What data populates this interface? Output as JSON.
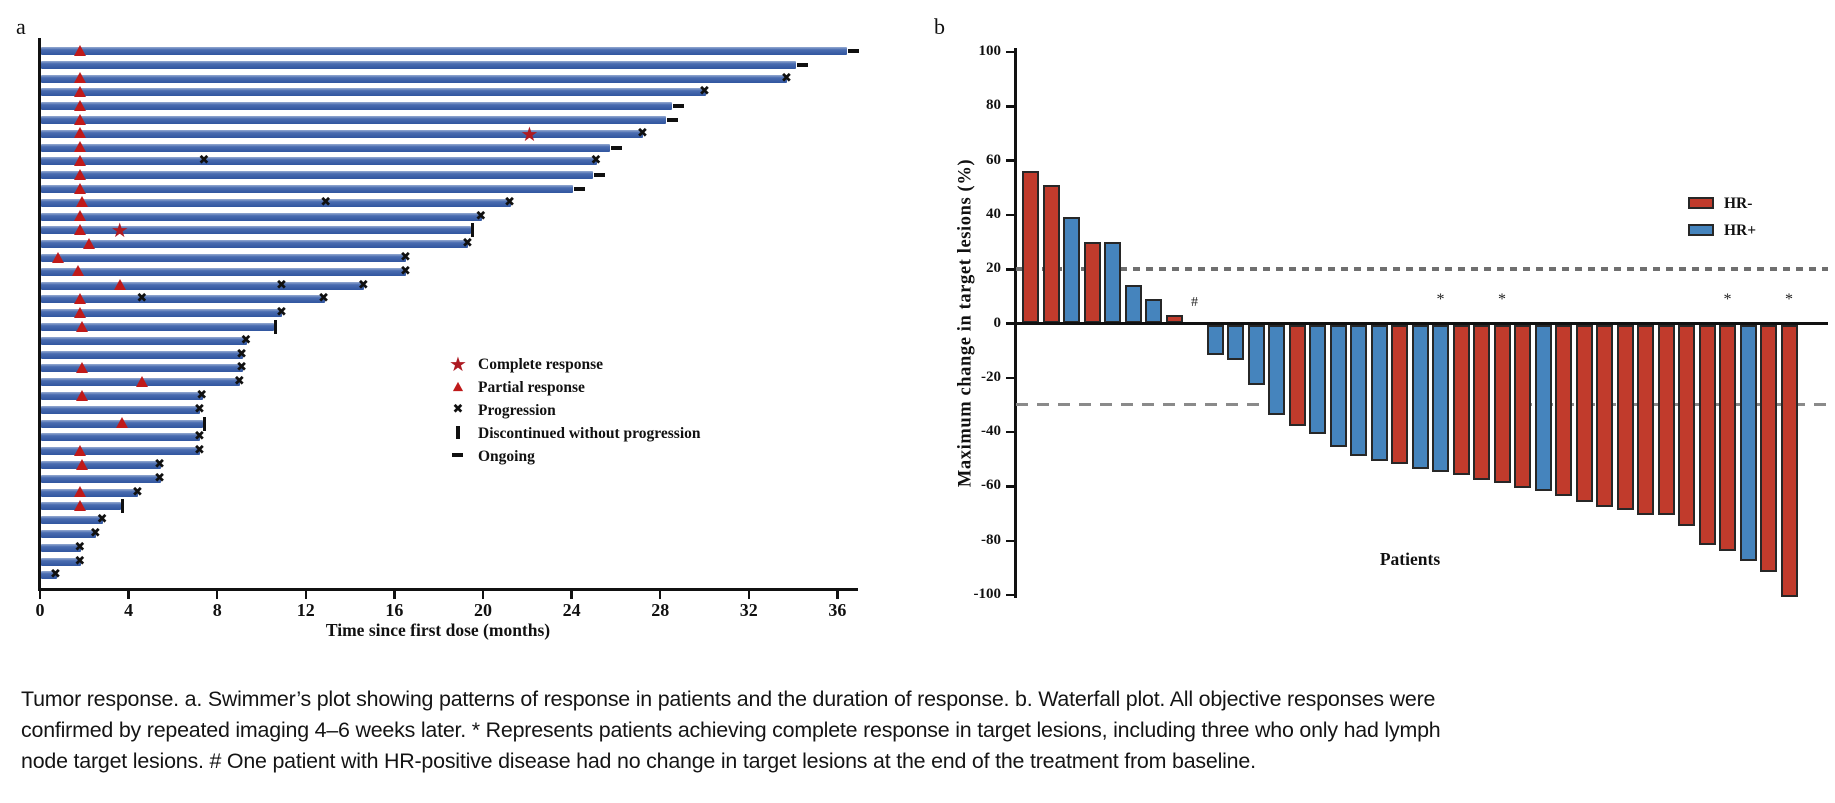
{
  "figure": {
    "panel_a_label": "a",
    "panel_b_label": "b"
  },
  "caption": {
    "lines": [
      "Tumor response. a. Swimmer’s plot showing patterns of response in patients and the duration of response. b. Waterfall plot. All objective responses were",
      "confirmed by repeated imaging 4–6 weeks later. * Represents patients achieving complete response in target lesions, including three who only had lymph",
      "node target lesions. # One patient with HR-positive disease had no change in target lesions at the end of the treatment from baseline."
    ]
  },
  "colors": {
    "swimmer_bar": "#3c63a8",
    "response_marker_red": "#bf1a1a",
    "event_marker_black": "#111111",
    "hr_negative": "#c13b2c",
    "hr_positive": "#4584bd",
    "reference_line": "#7f7f7f",
    "axis": "#111111"
  },
  "chart_data": [
    {
      "type": "swimmer",
      "panel": "a",
      "xlabel": "Time since first dose (months)",
      "x_ticks": [
        0,
        4,
        8,
        12,
        16,
        20,
        24,
        28,
        32,
        36
      ],
      "xlim": [
        0,
        37
      ],
      "grid": false,
      "legend_position": "center-right",
      "legend": [
        {
          "marker": "complete-response-star",
          "label": "Complete response"
        },
        {
          "marker": "partial-response-triangle",
          "label": "Partial response"
        },
        {
          "marker": "progression-x",
          "label": "Progression"
        },
        {
          "marker": "discontinued-bar",
          "label": "Discontinued without progression"
        },
        {
          "marker": "ongoing-dash",
          "label": "Ongoing"
        }
      ],
      "bars": [
        {
          "duration": 36.4,
          "events": [
            {
              "type": "partial_response",
              "t": 1.8
            },
            {
              "type": "ongoing",
              "t": 36.4
            }
          ]
        },
        {
          "duration": 34.1,
          "events": [
            {
              "type": "ongoing",
              "t": 34.1
            }
          ]
        },
        {
          "duration": 33.7,
          "events": [
            {
              "type": "partial_response",
              "t": 1.8
            },
            {
              "type": "progression",
              "t": 33.7
            }
          ]
        },
        {
          "duration": 30,
          "events": [
            {
              "type": "partial_response",
              "t": 1.8
            },
            {
              "type": "progression",
              "t": 30
            }
          ]
        },
        {
          "duration": 28.5,
          "events": [
            {
              "type": "partial_response",
              "t": 1.8
            },
            {
              "type": "ongoing",
              "t": 28.5
            }
          ]
        },
        {
          "duration": 28.2,
          "events": [
            {
              "type": "partial_response",
              "t": 1.8
            },
            {
              "type": "ongoing",
              "t": 28.2
            }
          ]
        },
        {
          "duration": 27.2,
          "events": [
            {
              "type": "partial_response",
              "t": 1.8
            },
            {
              "type": "complete_response",
              "t": 22.1
            },
            {
              "type": "progression",
              "t": 27.2
            }
          ]
        },
        {
          "duration": 25.7,
          "events": [
            {
              "type": "partial_response",
              "t": 1.8
            },
            {
              "type": "ongoing",
              "t": 25.7
            }
          ]
        },
        {
          "duration": 25.1,
          "events": [
            {
              "type": "partial_response",
              "t": 1.8
            },
            {
              "type": "progression",
              "t": 7.4
            },
            {
              "type": "progression",
              "t": 25.1
            }
          ]
        },
        {
          "duration": 24.9,
          "events": [
            {
              "type": "partial_response",
              "t": 1.8
            },
            {
              "type": "ongoing",
              "t": 24.9
            }
          ]
        },
        {
          "duration": 24,
          "events": [
            {
              "type": "partial_response",
              "t": 1.8
            },
            {
              "type": "ongoing",
              "t": 24
            }
          ]
        },
        {
          "duration": 21.2,
          "events": [
            {
              "type": "partial_response",
              "t": 1.9
            },
            {
              "type": "progression",
              "t": 12.9
            },
            {
              "type": "progression",
              "t": 21.2
            }
          ]
        },
        {
          "duration": 19.9,
          "events": [
            {
              "type": "partial_response",
              "t": 1.8
            },
            {
              "type": "progression",
              "t": 19.9
            }
          ]
        },
        {
          "duration": 19.4,
          "events": [
            {
              "type": "partial_response",
              "t": 1.8
            },
            {
              "type": "complete_response",
              "t": 3.6
            },
            {
              "type": "discontinued",
              "t": 19.4
            }
          ]
        },
        {
          "duration": 19.3,
          "events": [
            {
              "type": "partial_response",
              "t": 2.2
            },
            {
              "type": "progression",
              "t": 19.3
            }
          ]
        },
        {
          "duration": 16.5,
          "events": [
            {
              "type": "partial_response",
              "t": 0.8
            },
            {
              "type": "progression",
              "t": 16.5
            }
          ]
        },
        {
          "duration": 16.5,
          "events": [
            {
              "type": "partial_response",
              "t": 1.7
            },
            {
              "type": "progression",
              "t": 16.5
            }
          ]
        },
        {
          "duration": 14.6,
          "events": [
            {
              "type": "partial_response",
              "t": 3.6
            },
            {
              "type": "progression",
              "t": 10.9
            },
            {
              "type": "progression",
              "t": 14.6
            }
          ]
        },
        {
          "duration": 12.8,
          "events": [
            {
              "type": "partial_response",
              "t": 1.8
            },
            {
              "type": "progression",
              "t": 4.6
            },
            {
              "type": "progression",
              "t": 12.8
            }
          ]
        },
        {
          "duration": 10.9,
          "events": [
            {
              "type": "partial_response",
              "t": 1.8
            },
            {
              "type": "progression",
              "t": 10.9
            }
          ]
        },
        {
          "duration": 10.5,
          "events": [
            {
              "type": "partial_response",
              "t": 1.9
            },
            {
              "type": "discontinued",
              "t": 10.5
            }
          ]
        },
        {
          "duration": 9.3,
          "events": [
            {
              "type": "progression",
              "t": 9.3
            }
          ]
        },
        {
          "duration": 9.1,
          "events": [
            {
              "type": "progression",
              "t": 9.1
            }
          ]
        },
        {
          "duration": 9.1,
          "events": [
            {
              "type": "partial_response",
              "t": 1.9
            },
            {
              "type": "progression",
              "t": 9.1
            }
          ]
        },
        {
          "duration": 9,
          "events": [
            {
              "type": "partial_response",
              "t": 4.6
            },
            {
              "type": "progression",
              "t": 9
            }
          ]
        },
        {
          "duration": 7.3,
          "events": [
            {
              "type": "partial_response",
              "t": 1.9
            },
            {
              "type": "progression",
              "t": 7.3
            }
          ]
        },
        {
          "duration": 7.2,
          "events": [
            {
              "type": "progression",
              "t": 7.2
            }
          ]
        },
        {
          "duration": 7.3,
          "events": [
            {
              "type": "partial_response",
              "t": 3.7
            },
            {
              "type": "discontinued",
              "t": 7.3
            }
          ]
        },
        {
          "duration": 7.2,
          "events": [
            {
              "type": "progression",
              "t": 7.2
            }
          ]
        },
        {
          "duration": 7.2,
          "events": [
            {
              "type": "partial_response",
              "t": 1.8
            },
            {
              "type": "progression",
              "t": 7.2
            }
          ]
        },
        {
          "duration": 5.4,
          "events": [
            {
              "type": "partial_response",
              "t": 1.9
            },
            {
              "type": "progression",
              "t": 5.4
            }
          ]
        },
        {
          "duration": 5.4,
          "events": [
            {
              "type": "progression",
              "t": 5.4
            }
          ]
        },
        {
          "duration": 4.4,
          "events": [
            {
              "type": "partial_response",
              "t": 1.8
            },
            {
              "type": "progression",
              "t": 4.4
            }
          ]
        },
        {
          "duration": 3.6,
          "events": [
            {
              "type": "partial_response",
              "t": 1.8
            },
            {
              "type": "discontinued",
              "t": 3.6
            }
          ]
        },
        {
          "duration": 2.8,
          "events": [
            {
              "type": "progression",
              "t": 2.8
            }
          ]
        },
        {
          "duration": 2.5,
          "events": [
            {
              "type": "progression",
              "t": 2.5
            }
          ]
        },
        {
          "duration": 1.8,
          "events": [
            {
              "type": "progression",
              "t": 1.8
            }
          ]
        },
        {
          "duration": 1.8,
          "events": [
            {
              "type": "progression",
              "t": 1.8
            }
          ]
        },
        {
          "duration": 0.7,
          "events": [
            {
              "type": "progression",
              "t": 0.7
            }
          ]
        }
      ]
    },
    {
      "type": "waterfall",
      "panel": "b",
      "ylabel": "Maximum change in target lesions (%)",
      "xlabel": "Patients",
      "ylim": [
        -100,
        100
      ],
      "y_ticks": [
        100,
        80,
        60,
        40,
        20,
        0,
        -20,
        -40,
        -60,
        -80,
        -100
      ],
      "ref_lines": [
        20,
        -30
      ],
      "grid": false,
      "legend_position": "top-right",
      "legend": [
        {
          "label": "HR-",
          "color": "#c13b2c"
        },
        {
          "label": "HR+",
          "color": "#4584bd"
        }
      ],
      "patients": [
        {
          "value": 56,
          "group": "HR-"
        },
        {
          "value": 51,
          "group": "HR-"
        },
        {
          "value": 39,
          "group": "HR+"
        },
        {
          "value": 30,
          "group": "HR-"
        },
        {
          "value": 30,
          "group": "HR+"
        },
        {
          "value": 14,
          "group": "HR+"
        },
        {
          "value": 9,
          "group": "HR+"
        },
        {
          "value": 3,
          "group": "HR-"
        },
        {
          "value": 0,
          "group": "HR+",
          "annotation": "#"
        },
        {
          "value": -11,
          "group": "HR+"
        },
        {
          "value": -13,
          "group": "HR+"
        },
        {
          "value": -22,
          "group": "HR+"
        },
        {
          "value": -33,
          "group": "HR+"
        },
        {
          "value": -37,
          "group": "HR-"
        },
        {
          "value": -40,
          "group": "HR+"
        },
        {
          "value": -45,
          "group": "HR+"
        },
        {
          "value": -48,
          "group": "HR+"
        },
        {
          "value": -50,
          "group": "HR+"
        },
        {
          "value": -51,
          "group": "HR-"
        },
        {
          "value": -53,
          "group": "HR+"
        },
        {
          "value": -54,
          "group": "HR+",
          "annotation": "*"
        },
        {
          "value": -55,
          "group": "HR-"
        },
        {
          "value": -57,
          "group": "HR-"
        },
        {
          "value": -58,
          "group": "HR-",
          "annotation": "*"
        },
        {
          "value": -60,
          "group": "HR-"
        },
        {
          "value": -61,
          "group": "HR+"
        },
        {
          "value": -63,
          "group": "HR-"
        },
        {
          "value": -65,
          "group": "HR-"
        },
        {
          "value": -67,
          "group": "HR-"
        },
        {
          "value": -68,
          "group": "HR-"
        },
        {
          "value": -70,
          "group": "HR-"
        },
        {
          "value": -70,
          "group": "HR-"
        },
        {
          "value": -74,
          "group": "HR-"
        },
        {
          "value": -81,
          "group": "HR-"
        },
        {
          "value": -83,
          "group": "HR-",
          "annotation": "*"
        },
        {
          "value": -87,
          "group": "HR+"
        },
        {
          "value": -91,
          "group": "HR-"
        },
        {
          "value": -100,
          "group": "HR-",
          "annotation": "*"
        }
      ]
    }
  ]
}
